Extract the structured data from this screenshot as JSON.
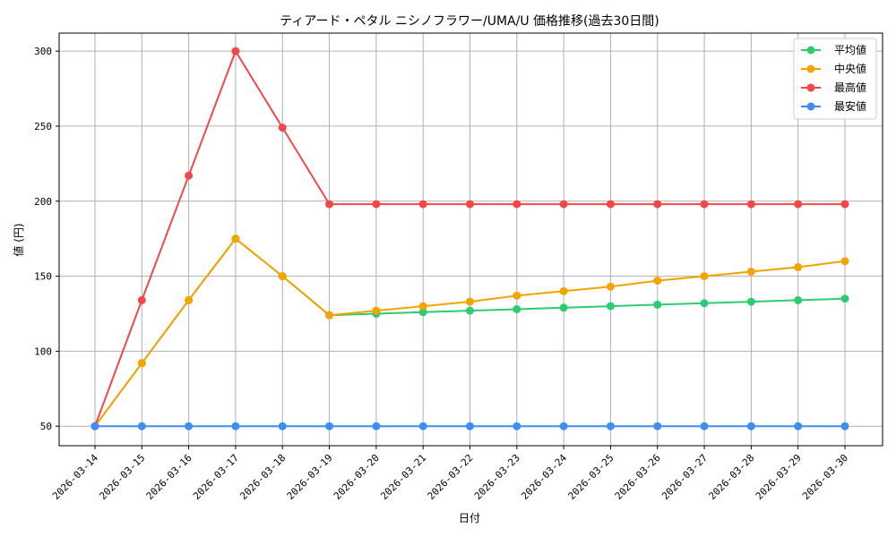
{
  "chart_data": {
    "type": "line",
    "title": "ティアード・ペタル ニシノフラワー/UMA/U 価格推移(過去30日間)",
    "xlabel": "日付",
    "ylabel": "値 (円)",
    "categories": [
      "2026-03-14",
      "2026-03-15",
      "2026-03-16",
      "2026-03-17",
      "2026-03-18",
      "2026-03-19",
      "2026-03-20",
      "2026-03-21",
      "2026-03-22",
      "2026-03-23",
      "2026-03-24",
      "2026-03-25",
      "2026-03-26",
      "2026-03-27",
      "2026-03-28",
      "2026-03-29",
      "2026-03-30"
    ],
    "ylim": [
      37,
      312
    ],
    "yticks": [
      50,
      100,
      150,
      200,
      250,
      300
    ],
    "grid": true,
    "legend_position": "top-right",
    "series": [
      {
        "name": "平均値",
        "color": "#2ecc71",
        "values": [
          50,
          92,
          134,
          175,
          150,
          124,
          125,
          126,
          127,
          128,
          129,
          130,
          131,
          132,
          133,
          134,
          135
        ]
      },
      {
        "name": "中央値",
        "color": "#f5a300",
        "values": [
          50,
          92,
          134,
          175,
          150,
          124,
          127,
          130,
          133,
          137,
          140,
          143,
          147,
          150,
          153,
          156,
          160
        ]
      },
      {
        "name": "最高値",
        "color": "#f04848",
        "values": [
          50,
          134,
          217,
          300,
          249,
          198,
          198,
          198,
          198,
          198,
          198,
          198,
          198,
          198,
          198,
          198,
          198
        ]
      },
      {
        "name": "最安値",
        "color": "#3d8ef0",
        "values": [
          50,
          50,
          50,
          50,
          50,
          50,
          50,
          50,
          50,
          50,
          50,
          50,
          50,
          50,
          50,
          50,
          50
        ]
      }
    ]
  }
}
